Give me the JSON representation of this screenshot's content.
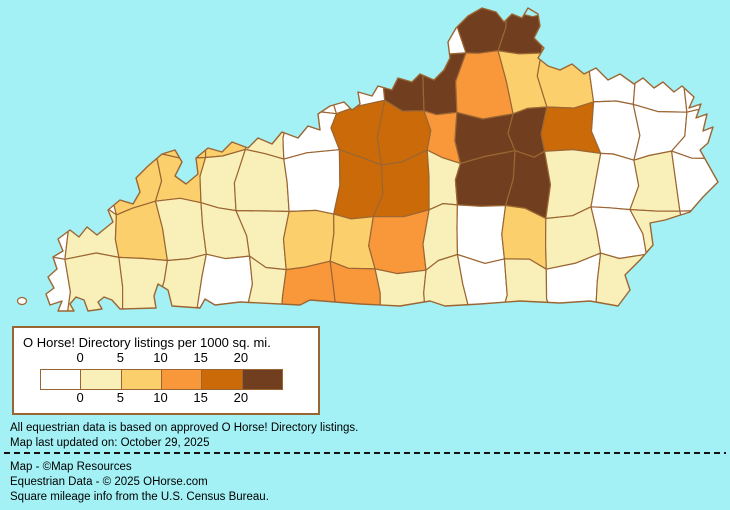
{
  "background_color": "#A3F0F5",
  "legend": {
    "title": "O Horse! Directory listings per 1000 sq. mi.",
    "tick_labels_top": [
      "0",
      "5",
      "10",
      "15",
      "20"
    ],
    "tick_labels_bottom": [
      "0",
      "5",
      "10",
      "15",
      "20"
    ],
    "swatch_colors": [
      "#FFFFFF",
      "#F8F0B8",
      "#FBD06C",
      "#F9983A",
      "#CA6A08",
      "#713F1F"
    ],
    "border_color": "#996633"
  },
  "notes": {
    "line1": "All equestrian data is based on approved O Horse! Directory listings.",
    "line2": "Map last updated on: October 29, 2025"
  },
  "credits": {
    "line1": "Map - ©Map Resources",
    "line2": "Equestrian Data - © 2025 OHorse.com",
    "line3": "Square mileage info from the U.S. Census Bureau."
  },
  "map_data": {
    "type": "choropleth",
    "region": "Kentucky counties",
    "metric": "O Horse! Directory listings per 1000 sq. mi.",
    "scale_bins": [
      0,
      5,
      10,
      15,
      20
    ],
    "palette": [
      "#FFFFFF",
      "#F8F0B8",
      "#FBD06C",
      "#F9983A",
      "#CA6A08",
      "#713F1F"
    ],
    "county_border_color": "#9C6633",
    "sea_color": "#A3F0F5",
    "density_grid": [
      "0000000000550000",
      "0000000055322000",
      "0022210443554000",
      "0022110441551010",
      "0121112231021010",
      "0111013311010100"
    ]
  }
}
